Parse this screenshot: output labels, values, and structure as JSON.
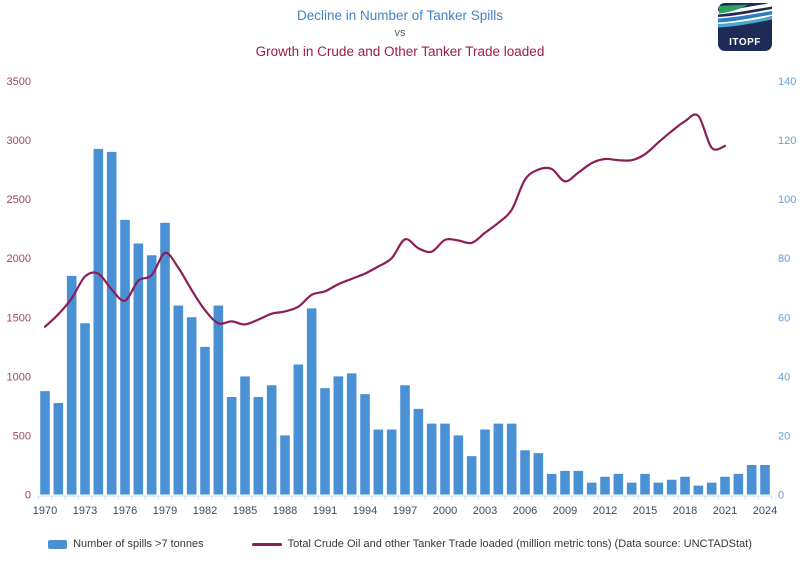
{
  "header": {
    "title_line1": "Decline in Number of Tanker Spills",
    "title_vs": "vs",
    "title_line2": "Growth in Crude and Other Tanker Trade loaded"
  },
  "logo": {
    "text": "ITOPF"
  },
  "legend": {
    "bars_label": "Number of spills >7 tonnes",
    "line_label": "Total Crude Oil and other Tanker Trade loaded (million metric tons) (Data source: UNCTADStat)"
  },
  "colors": {
    "bar": "#4a90d5",
    "line": "#8c1d55",
    "axis_line": "#c9def2",
    "left_tick_text": "#9c4569",
    "right_tick_text": "#6b9cd6",
    "x_tick_text": "#3e4a56",
    "title_blue": "#4681c2",
    "title_maroon": "#9e1b50",
    "logo_navy": "#1e2b57",
    "logo_green": "#2fa25f",
    "logo_blue": "#2f7dbf",
    "logo_teal": "#49a8d0"
  },
  "chart_data": {
    "type": "bar+line",
    "title": "Decline in Number of Tanker Spills",
    "subtitle": "Growth in Crude and Other Tanker Trade loaded",
    "grid": false,
    "legend_position": "bottom",
    "x": [
      1970,
      1971,
      1972,
      1973,
      1974,
      1975,
      1976,
      1977,
      1978,
      1979,
      1980,
      1981,
      1982,
      1983,
      1984,
      1985,
      1986,
      1987,
      1988,
      1989,
      1990,
      1991,
      1992,
      1993,
      1994,
      1995,
      1996,
      1997,
      1998,
      1999,
      2000,
      2001,
      2002,
      2003,
      2004,
      2005,
      2006,
      2007,
      2008,
      2009,
      2010,
      2011,
      2012,
      2013,
      2014,
      2015,
      2016,
      2017,
      2018,
      2019,
      2020,
      2021,
      2022,
      2023,
      2024
    ],
    "series": [
      {
        "name": "Number of spills >7 tonnes",
        "type": "bar",
        "axis": "right",
        "values": [
          35,
          31,
          74,
          58,
          117,
          116,
          93,
          85,
          81,
          92,
          64,
          60,
          50,
          64,
          33,
          40,
          33,
          37,
          20,
          44,
          63,
          36,
          40,
          41,
          34,
          22,
          22,
          37,
          29,
          24,
          24,
          20,
          13,
          22,
          24,
          24,
          15,
          14,
          7,
          8,
          8,
          4,
          6,
          7,
          4,
          7,
          4,
          5,
          6,
          3,
          4,
          6,
          7,
          10,
          10
        ]
      },
      {
        "name": "Total Crude Oil and other Tanker Trade loaded (million metric tons)",
        "type": "line",
        "axis": "left",
        "x": [
          1970,
          1971,
          1972,
          1973,
          1974,
          1975,
          1976,
          1977,
          1978,
          1979,
          1980,
          1981,
          1982,
          1983,
          1984,
          1985,
          1986,
          1987,
          1988,
          1989,
          1990,
          1991,
          1992,
          1993,
          1994,
          1995,
          1996,
          1997,
          1998,
          1999,
          2000,
          2001,
          2002,
          2003,
          2004,
          2005,
          2006,
          2007,
          2008,
          2009,
          2010,
          2011,
          2012,
          2013,
          2014,
          2015,
          2016,
          2017,
          2018,
          2019,
          2020,
          2021
        ],
        "values": [
          1420,
          1525,
          1660,
          1845,
          1870,
          1735,
          1640,
          1810,
          1855,
          2045,
          1920,
          1730,
          1560,
          1450,
          1465,
          1440,
          1480,
          1530,
          1550,
          1590,
          1690,
          1720,
          1780,
          1825,
          1870,
          1930,
          2000,
          2160,
          2085,
          2055,
          2155,
          2150,
          2130,
          2215,
          2300,
          2410,
          2665,
          2750,
          2755,
          2650,
          2725,
          2805,
          2840,
          2830,
          2830,
          2880,
          2980,
          3075,
          3160,
          3205,
          2935,
          2950
        ]
      }
    ],
    "axes": {
      "left": {
        "min": 0,
        "max": 3500,
        "ticks": [
          0,
          500,
          1000,
          1500,
          2000,
          2500,
          3000,
          3500
        ]
      },
      "right": {
        "min": 0,
        "max": 140,
        "ticks": [
          0,
          20,
          40,
          60,
          80,
          100,
          120,
          140
        ]
      },
      "x": {
        "tick_years": [
          1970,
          1973,
          1976,
          1979,
          1982,
          1985,
          1988,
          1991,
          1994,
          1997,
          2000,
          2003,
          2006,
          2009,
          2012,
          2015,
          2018,
          2021,
          2024
        ]
      }
    }
  }
}
